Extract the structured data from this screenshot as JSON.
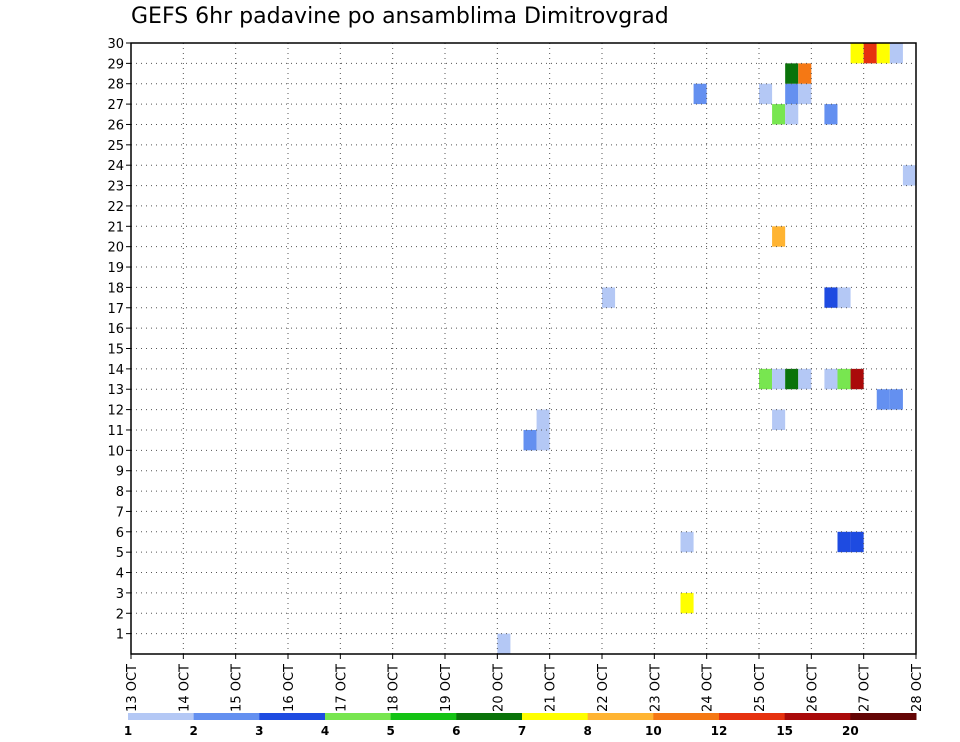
{
  "chart_data": {
    "type": "heatmap",
    "title": "GEFS 6hr padavine po ansamblima Dimitrovgrad",
    "xlabel": "",
    "ylabel": "",
    "x_tick_labels": [
      "13 OCT",
      "14 OCT",
      "15 OCT",
      "16 OCT",
      "17 OCT",
      "18 OCT",
      "19 OCT",
      "20 OCT",
      "21 OCT",
      "22 OCT",
      "23 OCT",
      "24 OCT",
      "25 OCT",
      "26 OCT",
      "27 OCT",
      "28 OCT"
    ],
    "y_tick_labels": [
      "1",
      "2",
      "3",
      "4",
      "5",
      "6",
      "7",
      "8",
      "9",
      "10",
      "11",
      "12",
      "13",
      "14",
      "15",
      "16",
      "17",
      "18",
      "19",
      "20",
      "21",
      "22",
      "23",
      "24",
      "25",
      "26",
      "27",
      "28",
      "29",
      "30"
    ],
    "xlim": [
      13,
      28
    ],
    "ylim": [
      0,
      30
    ],
    "grid": true,
    "legend_placement": "bottom",
    "color_scale": {
      "boundaries": [
        "1",
        "2",
        "3",
        "4",
        "5",
        "6",
        "7",
        "8",
        "10",
        "12",
        "15",
        "20"
      ],
      "colors": [
        "#b4c8f5",
        "#6490f0",
        "#1e4be1",
        "#78e650",
        "#14c314",
        "#0a730a",
        "#ffff00",
        "#ffb432",
        "#f57814",
        "#e6320f",
        "#aa0a0a",
        "#640505"
      ]
    },
    "cells": [
      {
        "x": 20.0,
        "y": 0,
        "value": 1
      },
      {
        "x": 23.5,
        "y": 2,
        "value": 7
      },
      {
        "x": 23.5,
        "y": 5,
        "value": 1
      },
      {
        "x": 26.5,
        "y": 5,
        "value": 3
      },
      {
        "x": 26.75,
        "y": 5,
        "value": 3
      },
      {
        "x": 20.5,
        "y": 10,
        "value": 2
      },
      {
        "x": 20.75,
        "y": 10,
        "value": 1
      },
      {
        "x": 20.75,
        "y": 11,
        "value": 1
      },
      {
        "x": 25.25,
        "y": 11,
        "value": 1
      },
      {
        "x": 27.25,
        "y": 12,
        "value": 2
      },
      {
        "x": 27.5,
        "y": 12,
        "value": 2
      },
      {
        "x": 25.0,
        "y": 13,
        "value": 4
      },
      {
        "x": 25.25,
        "y": 13,
        "value": 1
      },
      {
        "x": 25.5,
        "y": 13,
        "value": 6
      },
      {
        "x": 25.75,
        "y": 13,
        "value": 1
      },
      {
        "x": 26.25,
        "y": 13,
        "value": 1
      },
      {
        "x": 26.5,
        "y": 13,
        "value": 4
      },
      {
        "x": 26.75,
        "y": 13,
        "value": 15
      },
      {
        "x": 22.0,
        "y": 17,
        "value": 1
      },
      {
        "x": 26.25,
        "y": 17,
        "value": 3
      },
      {
        "x": 26.5,
        "y": 17,
        "value": 1
      },
      {
        "x": 25.25,
        "y": 20,
        "value": 8
      },
      {
        "x": 27.75,
        "y": 23,
        "value": 1
      },
      {
        "x": 25.25,
        "y": 26,
        "value": 4
      },
      {
        "x": 25.5,
        "y": 26,
        "value": 1
      },
      {
        "x": 26.25,
        "y": 26,
        "value": 2
      },
      {
        "x": 23.75,
        "y": 27,
        "value": 2
      },
      {
        "x": 25.0,
        "y": 27,
        "value": 1
      },
      {
        "x": 25.5,
        "y": 27,
        "value": 2
      },
      {
        "x": 25.75,
        "y": 27,
        "value": 1
      },
      {
        "x": 25.5,
        "y": 28,
        "value": 6
      },
      {
        "x": 25.75,
        "y": 28,
        "value": 10
      },
      {
        "x": 26.75,
        "y": 29,
        "value": 7
      },
      {
        "x": 27.0,
        "y": 29,
        "value": 12
      },
      {
        "x": 27.25,
        "y": 29,
        "value": 7
      },
      {
        "x": 27.5,
        "y": 29,
        "value": 1
      }
    ]
  }
}
